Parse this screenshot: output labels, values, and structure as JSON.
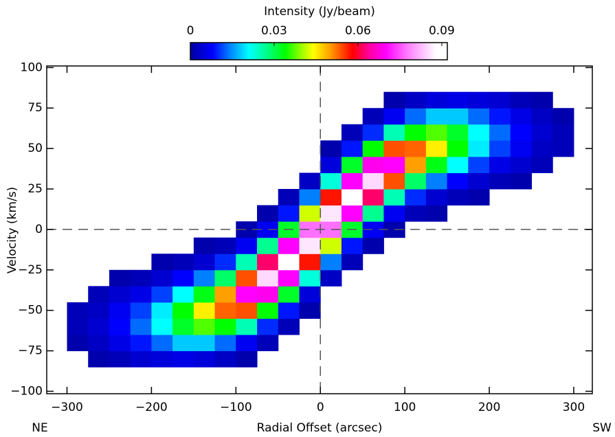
{
  "chart_data": {
    "type": "heatmap",
    "colorbar_title": "Intensity (Jy/beam)",
    "x_label": "Radial Offset (arcsec)",
    "y_label": "Velocity (km/s)",
    "annotations": [
      "NE",
      "SW"
    ],
    "xlim": [
      -324,
      322
    ],
    "ylim": [
      -101.5,
      101
    ],
    "xticks": [
      {
        "value": -300,
        "label": "−300"
      },
      {
        "value": -200,
        "label": "−200"
      },
      {
        "value": -100,
        "label": "−100"
      },
      0,
      100,
      200,
      300
    ],
    "yticks": [
      {
        "value": -100,
        "label": "−100"
      },
      {
        "value": -75,
        "label": "−75"
      },
      {
        "value": -50,
        "label": "−50"
      },
      {
        "value": -25,
        "label": "−25"
      },
      0,
      25,
      50,
      75,
      100
    ],
    "clim": [
      0,
      0.092
    ],
    "cticks": [
      0,
      0.03,
      0.06,
      0.09
    ],
    "colorscale": [
      [
        0,
        "#0000a0"
      ],
      [
        0.008,
        "#0000ff"
      ],
      [
        0.014,
        "#0080ff"
      ],
      [
        0.021,
        "#00ffff"
      ],
      [
        0.027,
        "#00ff90"
      ],
      [
        0.034,
        "#00ff00"
      ],
      [
        0.04,
        "#a0ff00"
      ],
      [
        0.044,
        "#ffff00"
      ],
      [
        0.05,
        "#ffa000"
      ],
      [
        0.058,
        "#ff0000"
      ],
      [
        0.064,
        "#ff00a0"
      ],
      [
        0.07,
        "#ff00ff"
      ],
      [
        0.078,
        "#ff80ff"
      ],
      [
        0.088,
        "#ffffff"
      ]
    ],
    "zero_lines": true,
    "x_edges": [
      -300,
      -275,
      -250,
      -225,
      -200,
      -175,
      -150,
      -125,
      -100,
      -75,
      -50,
      -25,
      0,
      25,
      50,
      75,
      100,
      125,
      150,
      175,
      200,
      225,
      250,
      275,
      300
    ],
    "y_edges": [
      -85,
      -75,
      -65,
      -55,
      -45,
      -35,
      -25,
      -15,
      -5,
      5,
      15,
      25,
      35,
      45,
      55,
      65,
      75,
      85
    ],
    "z": [
      [
        null,
        0.001,
        0.002,
        0.002,
        null,
        null,
        null,
        null,
        null,
        null,
        null,
        null,
        null,
        null,
        null,
        null,
        null
      ],
      [
        0.001,
        0.003,
        0.004,
        0.003,
        0.002,
        null,
        null,
        null,
        null,
        null,
        null,
        null,
        null,
        null,
        null,
        null,
        null
      ],
      [
        0.002,
        0.006,
        0.008,
        0.007,
        0.004,
        0.001,
        null,
        null,
        null,
        null,
        null,
        null,
        null,
        null,
        null,
        null,
        null
      ],
      [
        0.004,
        0.009,
        0.013,
        0.011,
        0.006,
        0.002,
        null,
        null,
        null,
        null,
        null,
        null,
        null,
        null,
        null,
        null,
        null
      ],
      [
        0.005,
        0.013,
        0.021,
        0.02,
        0.011,
        0.004,
        0.001,
        null,
        null,
        null,
        null,
        null,
        null,
        null,
        null,
        null,
        null
      ],
      [
        0.006,
        0.018,
        0.032,
        0.034,
        0.021,
        0.008,
        0.002,
        null,
        null,
        null,
        null,
        null,
        null,
        null,
        null,
        null,
        null
      ],
      [
        0.005,
        0.018,
        0.037,
        0.045,
        0.033,
        0.014,
        0.004,
        0.001,
        null,
        null,
        null,
        null,
        null,
        null,
        null,
        null,
        null
      ],
      [
        0.003,
        0.013,
        0.034,
        0.053,
        0.05,
        0.029,
        0.01,
        0.002,
        null,
        null,
        null,
        null,
        null,
        null,
        null,
        null,
        null
      ],
      [
        0.001,
        0.007,
        0.025,
        0.054,
        0.07,
        0.054,
        0.025,
        0.007,
        0.001,
        null,
        null,
        null,
        null,
        null,
        null,
        null,
        null
      ],
      [
        null,
        0.002,
        0.01,
        0.034,
        0.069,
        0.085,
        0.062,
        0.027,
        0.007,
        0.001,
        null,
        null,
        null,
        null,
        null,
        null,
        null
      ],
      [
        null,
        null,
        0.002,
        0.009,
        0.032,
        0.07,
        0.09,
        0.07,
        0.032,
        0.009,
        0.002,
        null,
        null,
        null,
        null,
        null,
        null
      ],
      [
        null,
        null,
        null,
        0.001,
        0.005,
        0.023,
        0.057,
        0.086,
        0.077,
        0.042,
        0.014,
        0.003,
        null,
        null,
        null,
        null,
        null
      ],
      [
        null,
        null,
        null,
        null,
        null,
        0.003,
        0.014,
        0.042,
        0.077,
        0.086,
        0.057,
        0.023,
        0.005,
        0.001,
        null,
        null,
        null
      ],
      [
        null,
        null,
        null,
        null,
        null,
        null,
        0.002,
        0.009,
        0.032,
        0.07,
        0.09,
        0.07,
        0.032,
        0.009,
        0.002,
        null,
        null
      ],
      [
        null,
        null,
        null,
        null,
        null,
        null,
        null,
        0.001,
        0.007,
        0.027,
        0.062,
        0.085,
        0.069,
        0.034,
        0.01,
        0.002,
        null
      ],
      [
        null,
        null,
        null,
        null,
        null,
        null,
        null,
        null,
        0.001,
        0.007,
        0.025,
        0.054,
        0.07,
        0.054,
        0.025,
        0.007,
        0.001
      ],
      [
        null,
        null,
        null,
        null,
        null,
        null,
        null,
        null,
        null,
        0.002,
        0.01,
        0.029,
        0.05,
        0.053,
        0.034,
        0.013,
        0.003
      ],
      [
        null,
        null,
        null,
        null,
        null,
        null,
        null,
        null,
        null,
        0.001,
        0.004,
        0.014,
        0.033,
        0.045,
        0.037,
        0.018,
        0.005
      ],
      [
        null,
        null,
        null,
        null,
        null,
        null,
        null,
        null,
        null,
        null,
        0.002,
        0.008,
        0.021,
        0.034,
        0.032,
        0.018,
        0.006
      ],
      [
        null,
        null,
        null,
        null,
        null,
        null,
        null,
        null,
        null,
        null,
        0.001,
        0.004,
        0.011,
        0.02,
        0.021,
        0.013,
        0.005
      ],
      [
        null,
        null,
        null,
        null,
        null,
        null,
        null,
        null,
        null,
        null,
        null,
        0.002,
        0.006,
        0.011,
        0.013,
        0.009,
        0.004
      ],
      [
        null,
        null,
        null,
        null,
        null,
        null,
        null,
        null,
        null,
        null,
        null,
        0.001,
        0.004,
        0.007,
        0.008,
        0.006,
        0.002
      ],
      [
        null,
        null,
        null,
        null,
        null,
        null,
        null,
        null,
        null,
        null,
        null,
        null,
        0.002,
        0.003,
        0.004,
        0.003,
        0.001
      ],
      [
        null,
        null,
        null,
        null,
        null,
        null,
        null,
        null,
        null,
        null,
        null,
        null,
        null,
        0.002,
        0.002,
        0.001,
        null
      ]
    ]
  }
}
